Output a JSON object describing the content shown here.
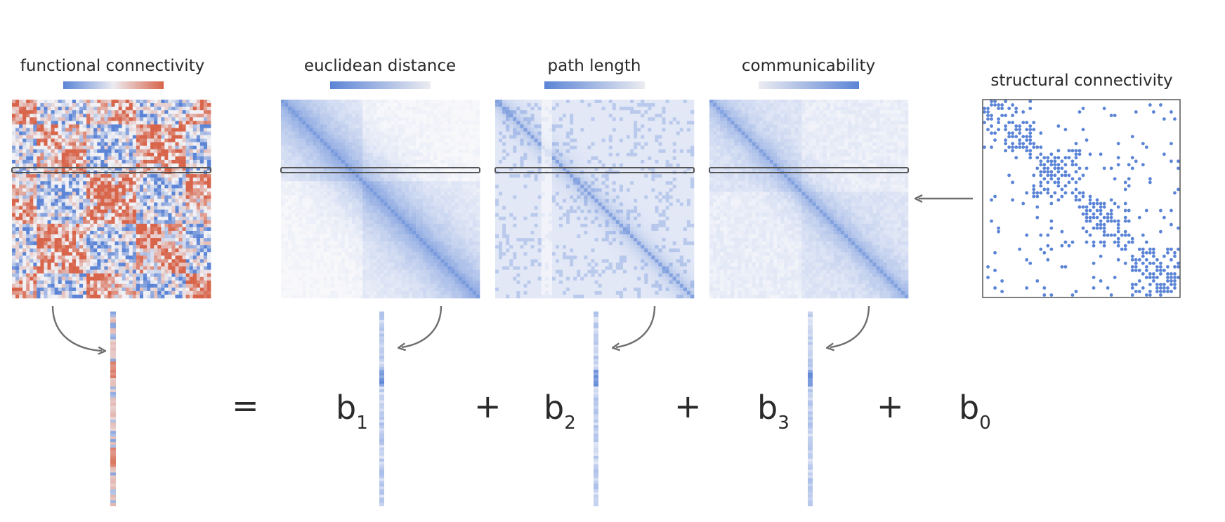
{
  "panels": {
    "fc_title": "functional connectivity",
    "euclid_title": "euclidean distance",
    "path_title": "path length",
    "comm_title": "communicability",
    "sc_title": "structural connectivity"
  },
  "equation": {
    "equals": "=",
    "plus1": "+",
    "plus2": "+",
    "plus3": "+",
    "b1": "b",
    "b1_sub": "1",
    "b2": "b",
    "b2_sub": "2",
    "b3": "b",
    "b3_sub": "3",
    "b0": "b",
    "b0_sub": "0"
  },
  "colors": {
    "blue": "#5b84d6",
    "red": "#d8644a",
    "light": "#ececf1",
    "arrow": "#6e6e6e",
    "highlight": "#555555"
  }
}
